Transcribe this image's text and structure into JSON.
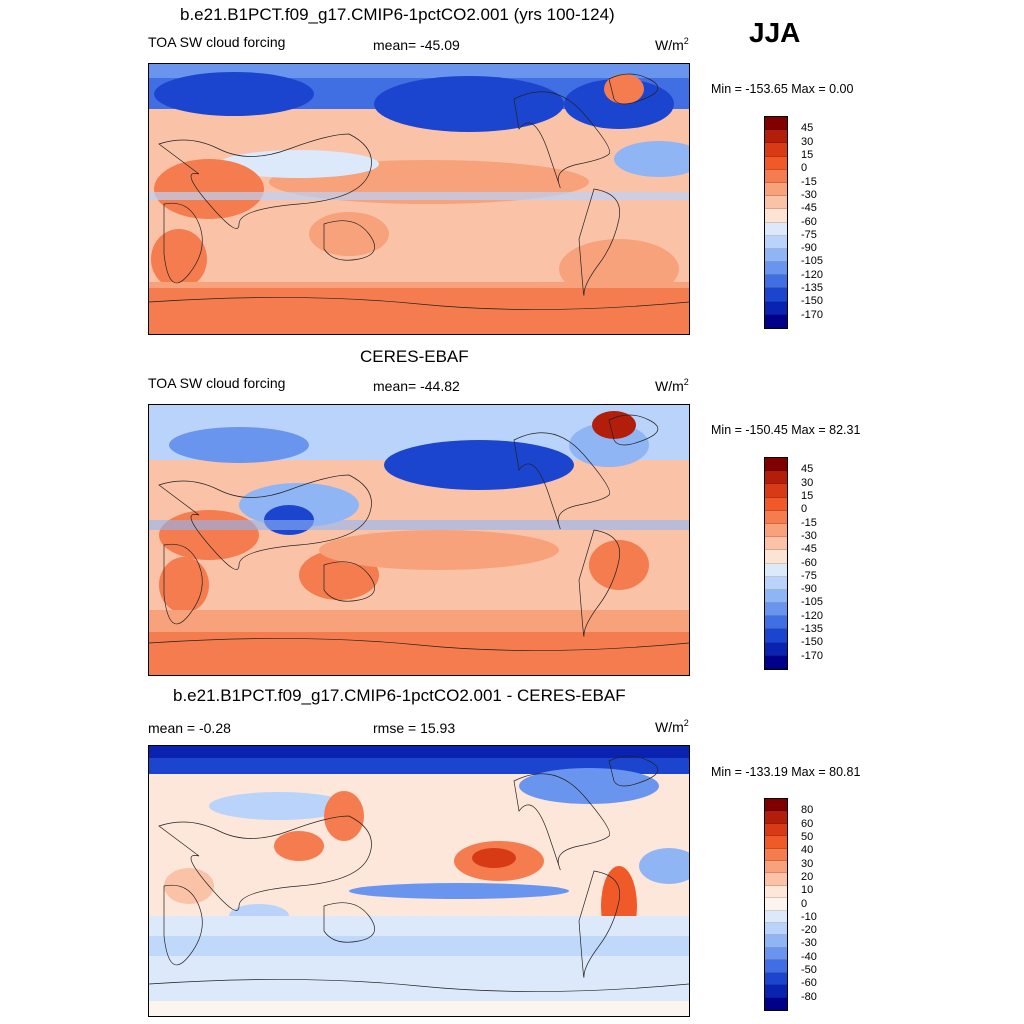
{
  "season": "JJA",
  "panels": [
    {
      "title": "b.e21.B1PCT.f09_g17.CMIP6-1pctCO2.001 (yrs 100-124)",
      "left_label": "TOA SW cloud forcing",
      "center_label": "mean= -45.09",
      "units": "W/m",
      "units_sup": "2",
      "minmax": "Min = -153.65 Max =    0.00",
      "colorbar_labels": [
        "45",
        "30",
        "15",
        "0",
        "-15",
        "-30",
        "-45",
        "-60",
        "-75",
        "-90",
        "-105",
        "-120",
        "-135",
        "-150",
        "-170"
      ]
    },
    {
      "title": "CERES-EBAF",
      "left_label": "TOA SW cloud forcing",
      "center_label": "mean= -44.82",
      "units": "W/m",
      "units_sup": "2",
      "minmax": "Min = -150.45 Max =  82.31",
      "colorbar_labels": [
        "45",
        "30",
        "15",
        "0",
        "-15",
        "-30",
        "-45",
        "-60",
        "-75",
        "-90",
        "-105",
        "-120",
        "-135",
        "-150",
        "-170"
      ]
    },
    {
      "title": "b.e21.B1PCT.f09_g17.CMIP6-1pctCO2.001 - CERES-EBAF",
      "left_label": "mean =  -0.28",
      "center_label": "rmse =  15.93",
      "units": "W/m",
      "units_sup": "2",
      "minmax": "Min = -133.19 Max =  80.81",
      "colorbar_labels": [
        "80",
        "60",
        "50",
        "40",
        "30",
        "20",
        "10",
        "0",
        "-10",
        "-20",
        "-30",
        "-40",
        "-50",
        "-60",
        "-80"
      ]
    }
  ],
  "palettes": {
    "levels": [
      "#800000",
      "#b21e0a",
      "#d83a16",
      "#f05a28",
      "#f57c4e",
      "#f8a27c",
      "#fac3a8",
      "#fde3d4",
      "#dbe9fb",
      "#b9d3fa",
      "#8fb5f5",
      "#6a95ee",
      "#3f6fe3",
      "#1c45cf",
      "#0a22b0",
      "#00008a"
    ],
    "diff": [
      "#800000",
      "#b21e0a",
      "#d83a16",
      "#f05a28",
      "#f57c4e",
      "#f8a27c",
      "#fac3a8",
      "#fde6da",
      "#fbf4ef",
      "#dbe9fb",
      "#b9d3fa",
      "#8fb5f5",
      "#6a95ee",
      "#3f6fe3",
      "#1c45cf",
      "#0a22b0",
      "#00008a"
    ]
  }
}
